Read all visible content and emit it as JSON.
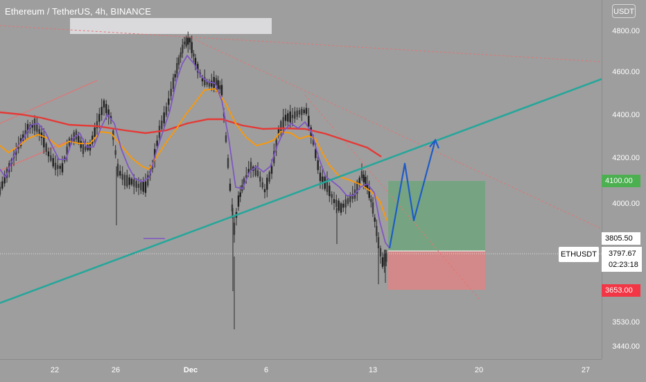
{
  "header": {
    "title": "Ethereum / TetherUS, 4h, BINANCE",
    "currency_button": "USDT"
  },
  "price_axis": {
    "ticks": [
      "4800.00",
      "4600.00",
      "4400.00",
      "4200.00",
      "4000.00",
      "3530.00",
      "3440.00"
    ],
    "labels": {
      "target": "4100.00",
      "entry": "3805.50",
      "last_price": "3797.67",
      "countdown": "02:23:18",
      "stop": "3653.00"
    },
    "symbol_tag": "ETHUSDT"
  },
  "time_axis": {
    "ticks": [
      {
        "label": "22",
        "bold": false
      },
      {
        "label": "26",
        "bold": false
      },
      {
        "label": "Dec",
        "bold": true
      },
      {
        "label": "6",
        "bold": false
      },
      {
        "label": "13",
        "bold": false
      },
      {
        "label": "20",
        "bold": false
      },
      {
        "label": "27",
        "bold": false
      }
    ]
  },
  "colors": {
    "background": "#9e9e9e",
    "candle": "#2a2a2a",
    "ma_fast": "#7e57c2",
    "ma_mid": "#ff9800",
    "ma_slow": "#e53935",
    "trendline": "#26a69a",
    "projection": "#1e5bc6",
    "target_zone": "#6fa57d",
    "stop_zone": "#d88686"
  }
}
